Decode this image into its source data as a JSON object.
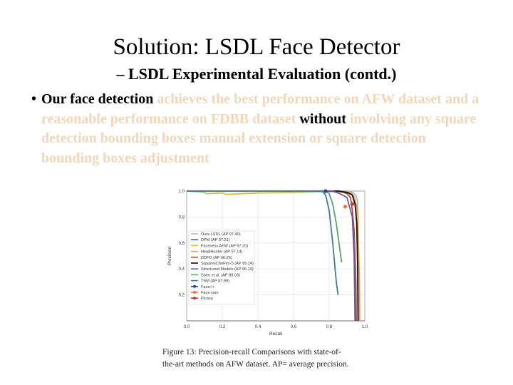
{
  "slide": {
    "title": "Solution: LSDL Face Detector",
    "subtitle": "– LSDL Experimental Evaluation (contd.)",
    "bullet_marker": "•",
    "bullet": [
      {
        "text": "Our face detection ",
        "highlight": false
      },
      {
        "text": "achieves the best performance on AFW dataset and a reasonable performance on FDBB dataset ",
        "highlight": true
      },
      {
        "text": "without ",
        "highlight": false
      },
      {
        "text": "involving any square detection bounding boxes manual extension or square detection bounding boxes adjustment",
        "highlight": true
      }
    ],
    "highlight_color": "#f1d7ba"
  },
  "figure": {
    "caption_line1": "Figure 13:  Precision-recall  Comparisons  with  state-of-",
    "caption_line2": "the-art methods on AFW dataset. AP= average precision."
  },
  "chart_data": {
    "type": "line",
    "xlabel": "Recall",
    "ylabel": "Precision",
    "xlim": [
      0.0,
      1.0
    ],
    "ylim": [
      0.0,
      1.0
    ],
    "x_ticks": [
      "0.0",
      "0.2",
      "0.4",
      "0.6",
      "0.8",
      "1.0"
    ],
    "y_ticks": [
      "0.2",
      "0.4",
      "0.6",
      "0.8",
      "1.0"
    ],
    "legend_position": "left",
    "grid": true,
    "series": [
      {
        "name": "Ours LSDL (AP 97.40)",
        "color": "#a9b8d9",
        "points": [
          [
            0.0,
            1.0
          ],
          [
            0.9,
            1.0
          ],
          [
            0.93,
            0.99
          ],
          [
            0.95,
            0.97
          ],
          [
            0.96,
            0.92
          ],
          [
            0.97,
            0.0
          ]
        ]
      },
      {
        "name": "DPM (AP 97.21)",
        "color": "#3f5fa8",
        "points": [
          [
            0.0,
            1.0
          ],
          [
            0.85,
            1.0
          ],
          [
            0.9,
            0.99
          ],
          [
            0.93,
            0.97
          ],
          [
            0.95,
            0.9
          ],
          [
            0.96,
            0.5
          ],
          [
            0.965,
            0.0
          ]
        ]
      },
      {
        "name": "Faceness AFW (AP 97.20)",
        "color": "#e9b82e",
        "points": [
          [
            0.0,
            1.0
          ],
          [
            0.1,
            0.99
          ],
          [
            0.11,
            0.98
          ],
          [
            0.2,
            0.985
          ],
          [
            0.22,
            0.975
          ],
          [
            0.4,
            0.985
          ],
          [
            0.6,
            0.99
          ],
          [
            0.8,
            0.995
          ],
          [
            0.9,
            0.99
          ],
          [
            0.93,
            0.97
          ],
          [
            0.95,
            0.9
          ],
          [
            0.96,
            0.5
          ],
          [
            0.965,
            0.0
          ]
        ]
      },
      {
        "name": "HeadHunter (AP 97.14)",
        "color": "#d9a66a",
        "points": [
          [
            0.0,
            1.0
          ],
          [
            0.88,
            1.0
          ],
          [
            0.92,
            0.99
          ],
          [
            0.94,
            0.96
          ],
          [
            0.96,
            0.85
          ],
          [
            0.97,
            0.3
          ],
          [
            0.972,
            0.0
          ]
        ]
      },
      {
        "name": "DDFD (AP 96.26)",
        "color": "#a0522d",
        "points": [
          [
            0.0,
            1.0
          ],
          [
            0.86,
            1.0
          ],
          [
            0.9,
            0.98
          ],
          [
            0.92,
            0.95
          ],
          [
            0.93,
            0.85
          ],
          [
            0.94,
            0.7
          ],
          [
            0.95,
            0.3
          ],
          [
            0.952,
            0.0
          ]
        ]
      },
      {
        "name": "SquaresChnFtrs-5 (AP 95.24)",
        "color": "#111111",
        "points": [
          [
            0.0,
            1.0
          ],
          [
            0.85,
            1.0
          ],
          [
            0.9,
            0.99
          ],
          [
            0.93,
            0.97
          ],
          [
            0.945,
            0.9
          ],
          [
            0.955,
            0.75
          ],
          [
            0.96,
            0.4
          ],
          [
            0.962,
            0.0
          ]
        ]
      },
      {
        "name": "Structured Models (AP 95.19)",
        "color": "#7a4fa0",
        "points": [
          [
            0.0,
            1.0
          ],
          [
            0.82,
            1.0
          ],
          [
            0.86,
            0.98
          ],
          [
            0.9,
            0.95
          ],
          [
            0.93,
            0.8
          ],
          [
            0.94,
            0.5
          ],
          [
            0.945,
            0.0
          ]
        ]
      },
      {
        "name": "Shen et al. (AP 89.03)",
        "color": "#5aa469",
        "points": [
          [
            0.0,
            1.0
          ],
          [
            0.78,
            1.0
          ],
          [
            0.8,
            0.98
          ],
          [
            0.82,
            0.9
          ],
          [
            0.84,
            0.75
          ],
          [
            0.86,
            0.55
          ],
          [
            0.87,
            0.45
          ]
        ]
      },
      {
        "name": "TSM (AP 87.99)",
        "color": "#3d7f8c",
        "points": [
          [
            0.0,
            1.0
          ],
          [
            0.76,
            1.0
          ],
          [
            0.78,
            0.97
          ],
          [
            0.8,
            0.85
          ],
          [
            0.82,
            0.6
          ],
          [
            0.84,
            0.3
          ],
          [
            0.85,
            0.2
          ]
        ]
      },
      {
        "name": "Face++",
        "color": "#2c3e87",
        "marker": true,
        "points": [
          [
            0.78,
            1.0
          ]
        ]
      },
      {
        "name": "Face.com",
        "color": "#e07b39",
        "marker": true,
        "points": [
          [
            0.89,
            0.88
          ]
        ]
      },
      {
        "name": "Picasa",
        "color": "#c0392b",
        "marker": true,
        "points": [
          [
            0.93,
            0.9
          ]
        ]
      }
    ]
  }
}
